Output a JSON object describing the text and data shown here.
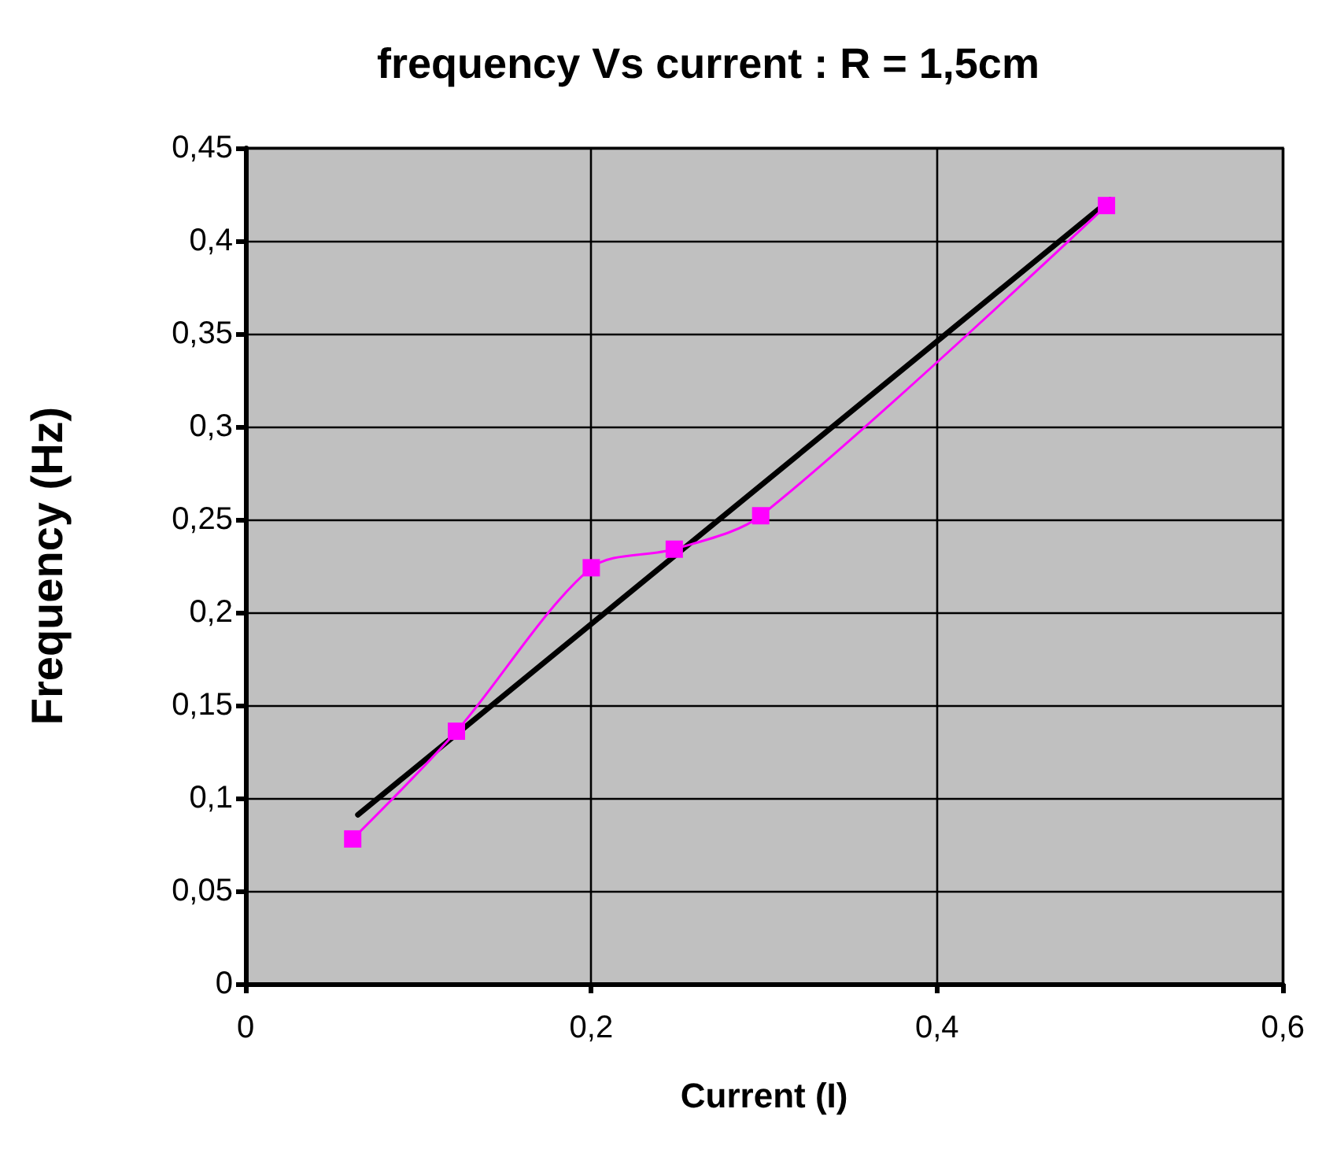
{
  "chart_data": {
    "type": "line",
    "title": "frequency Vs current : R = 1,5cm",
    "xlabel": "Current (I)",
    "ylabel": "Frequency (Hz)",
    "x": [
      0.062,
      0.122,
      0.2,
      0.248,
      0.298,
      0.498
    ],
    "series": [
      {
        "color": "#ff00ff",
        "values": [
          0.078,
          0.136,
          0.224,
          0.234,
          0.252,
          0.419
        ],
        "marker": "square"
      },
      {
        "type": "line",
        "color": "#000000",
        "x": [
          0.065,
          0.5
        ],
        "values": [
          0.091,
          0.422
        ],
        "marker": "none"
      }
    ],
    "xlim": [
      0,
      0.6
    ],
    "xticks": [
      0,
      {
        "value": 0.2,
        "label": "0,2"
      },
      {
        "value": 0.4,
        "label": "0,4"
      },
      {
        "value": 0.6,
        "label": "0,6"
      }
    ],
    "ylim": [
      0,
      0.45
    ],
    "yticks": [
      0,
      {
        "value": 0.05,
        "label": "0,05"
      },
      {
        "value": 0.1,
        "label": "0,1"
      },
      {
        "value": 0.15,
        "label": "0,15"
      },
      {
        "value": 0.2,
        "label": "0,2"
      },
      {
        "value": 0.25,
        "label": "0,25"
      },
      {
        "value": 0.3,
        "label": "0,3"
      },
      {
        "value": 0.35,
        "label": "0,35"
      },
      {
        "value": 0.4,
        "label": "0,4"
      },
      {
        "value": 0.45,
        "label": "0,45"
      }
    ],
    "grid": true
  }
}
